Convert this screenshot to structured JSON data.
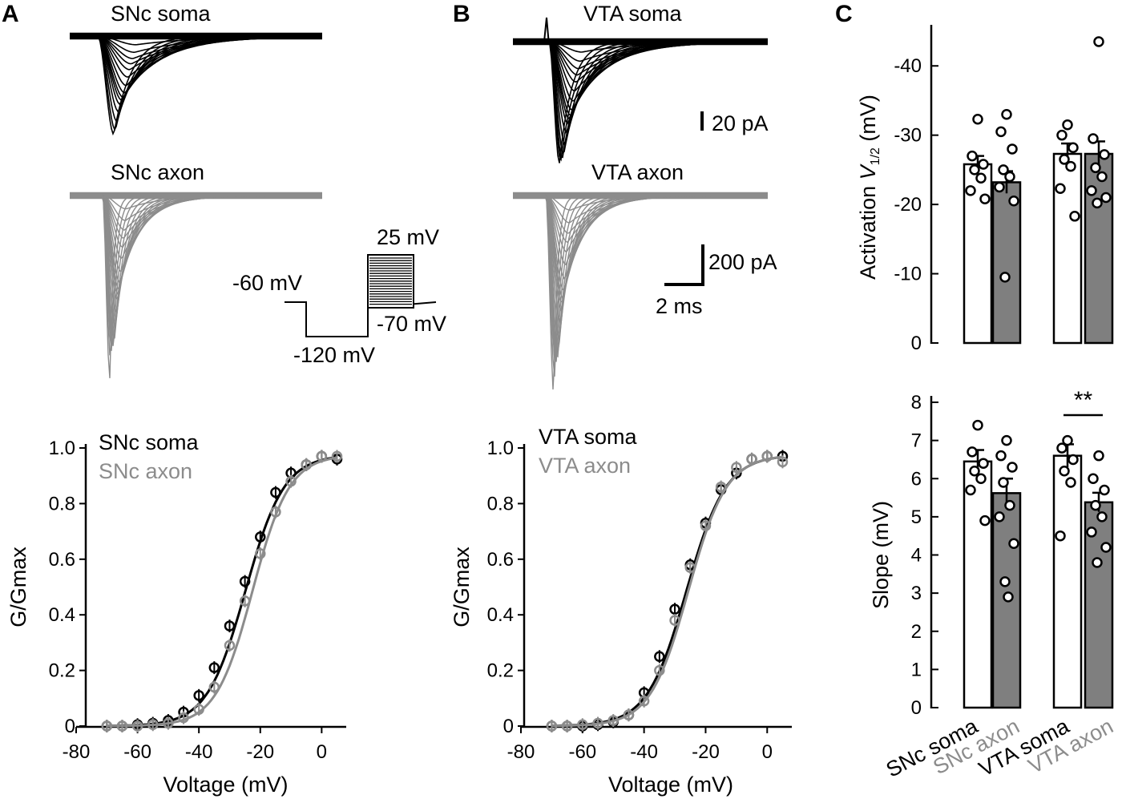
{
  "panels": {
    "a": {
      "letter": "A",
      "soma_trace_label": "SNc soma",
      "axon_trace_label": "SNc axon"
    },
    "b": {
      "letter": "B",
      "soma_trace_label": "VTA soma",
      "axon_trace_label": "VTA axon"
    },
    "c": {
      "letter": "C"
    }
  },
  "protocol": {
    "holding": "-60 mV",
    "prepulse": "-120 mV",
    "step_max": "25 mV",
    "post": "-70 mV"
  },
  "scalebars": {
    "small_current": "20 pA",
    "large_current": "200 pA",
    "time": "2 ms"
  },
  "colors": {
    "soma": "#000000",
    "axon": "#8c8c8c",
    "axon_bar_fill": "#7f7f7f"
  },
  "chart_data": [
    {
      "id": "snc-activation",
      "type": "line",
      "title": "",
      "xlabel": "Voltage (mV)",
      "ylabel": "G/Gmax",
      "xlim": [
        -80,
        8
      ],
      "ylim": [
        0,
        1.0
      ],
      "xticks": [
        -80,
        -60,
        -40,
        -20,
        0
      ],
      "yticks": [
        0,
        0.2,
        0.4,
        0.6,
        0.8,
        1.0
      ],
      "ytick_labels": [
        "0",
        "0.2",
        "0.4",
        "0.6",
        "0.8",
        "1.0"
      ],
      "legend": [
        "SNc soma",
        "SNc axon"
      ],
      "series": [
        {
          "name": "SNc soma",
          "x": [
            -70,
            -65,
            -60,
            -55,
            -50,
            -45,
            -40,
            -35,
            -30,
            -25,
            -20,
            -15,
            -10,
            -5,
            0,
            5
          ],
          "values": [
            0.0,
            0.0,
            0.005,
            0.01,
            0.02,
            0.05,
            0.11,
            0.21,
            0.36,
            0.52,
            0.68,
            0.84,
            0.91,
            0.94,
            0.97,
            0.96
          ]
        },
        {
          "name": "SNc axon",
          "x": [
            -70,
            -65,
            -60,
            -55,
            -50,
            -45,
            -40,
            -35,
            -30,
            -25,
            -20,
            -15,
            -10,
            -5,
            0,
            5
          ],
          "values": [
            0.0,
            0.0,
            0.0,
            0.005,
            0.01,
            0.03,
            0.06,
            0.14,
            0.29,
            0.45,
            0.62,
            0.77,
            0.88,
            0.94,
            0.97,
            0.97
          ]
        }
      ]
    },
    {
      "id": "vta-activation",
      "type": "line",
      "title": "",
      "xlabel": "Voltage (mV)",
      "ylabel": "G/Gmax",
      "xlim": [
        -80,
        8
      ],
      "ylim": [
        0,
        1.0
      ],
      "xticks": [
        -80,
        -60,
        -40,
        -20,
        0
      ],
      "yticks": [
        0,
        0.2,
        0.4,
        0.6,
        0.8,
        1.0
      ],
      "ytick_labels": [
        "0",
        "0.2",
        "0.4",
        "0.6",
        "0.8",
        "1.0"
      ],
      "legend": [
        "VTA soma",
        "VTA axon"
      ],
      "series": [
        {
          "name": "VTA soma",
          "x": [
            -70,
            -65,
            -60,
            -55,
            -50,
            -45,
            -40,
            -35,
            -30,
            -25,
            -20,
            -15,
            -10,
            -5,
            0,
            5
          ],
          "values": [
            0.0,
            0.0,
            0.0,
            0.005,
            0.015,
            0.04,
            0.12,
            0.25,
            0.42,
            0.58,
            0.73,
            0.85,
            0.91,
            0.96,
            0.97,
            0.97
          ]
        },
        {
          "name": "VTA axon",
          "x": [
            -70,
            -65,
            -60,
            -55,
            -50,
            -45,
            -40,
            -35,
            -30,
            -25,
            -20,
            -15,
            -10,
            -5,
            0,
            5
          ],
          "values": [
            0.0,
            0.0,
            0.005,
            0.01,
            0.02,
            0.04,
            0.09,
            0.2,
            0.38,
            0.57,
            0.72,
            0.86,
            0.93,
            0.96,
            0.97,
            0.95
          ]
        }
      ]
    },
    {
      "id": "v-half",
      "type": "bar",
      "title": "",
      "xlabel": "",
      "ylabel_main": "Activation ",
      "ylabel_var": "V",
      "ylabel_sub": "1/2",
      "ylabel_unit": " (mV)",
      "ylim": [
        0,
        -45
      ],
      "yticks": [
        0,
        -10,
        -20,
        -30,
        -40
      ],
      "categories": [
        "SNc soma",
        "SNc axon",
        "VTA soma",
        "VTA axon"
      ],
      "values": [
        -25.8,
        -23.2,
        -27.3,
        -27.3
      ],
      "errors": [
        1.2,
        1.6,
        1.5,
        1.8
      ],
      "points": [
        [
          -32.3,
          -27.0,
          -25.8,
          -25.0,
          -23.8,
          -22.0,
          -20.8
        ],
        [
          -33.0,
          -30.5,
          -28.0,
          -25.0,
          -24.0,
          -22.5,
          -20.5,
          -9.5
        ],
        [
          -31.5,
          -30.0,
          -28.2,
          -26.5,
          -25.5,
          -22.3,
          -18.3
        ],
        [
          -43.5,
          -29.5,
          -27.2,
          -25.3,
          -24.0,
          -22.0,
          -21.0,
          -20.2
        ]
      ]
    },
    {
      "id": "slope",
      "type": "bar",
      "title": "",
      "xlabel": "",
      "ylabel": "Slope (mV)",
      "ylim": [
        0,
        8
      ],
      "yticks": [
        0,
        1,
        2,
        3,
        4,
        5,
        6,
        7,
        8
      ],
      "categories": [
        "SNc soma",
        "SNc axon",
        "VTA soma",
        "VTA axon"
      ],
      "values": [
        6.45,
        5.62,
        6.6,
        5.38
      ],
      "errors": [
        0.3,
        0.38,
        0.3,
        0.25
      ],
      "points": [
        [
          7.4,
          6.7,
          6.4,
          6.2,
          6.0,
          5.7,
          4.9
        ],
        [
          7.0,
          6.6,
          6.3,
          5.9,
          5.3,
          5.0,
          4.3,
          3.3,
          2.9
        ],
        [
          7.0,
          6.8,
          6.5,
          6.2,
          5.9,
          4.5
        ],
        [
          6.6,
          6.0,
          5.7,
          5.3,
          5.0,
          4.6,
          4.2,
          3.8
        ]
      ],
      "significance": {
        "pair": [
          2,
          3
        ],
        "label": "**"
      }
    }
  ]
}
